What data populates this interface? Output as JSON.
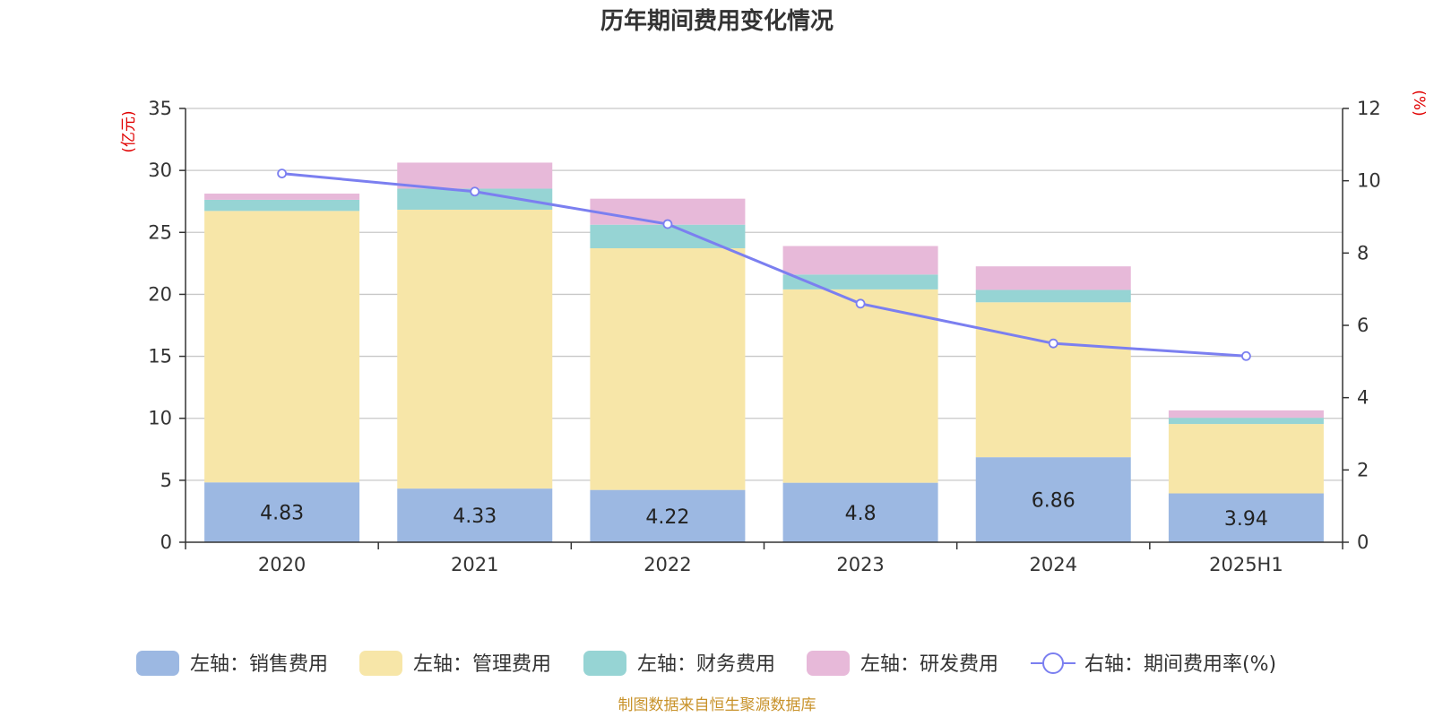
{
  "title": "历年期间费用变化情况",
  "left_unit": "(亿元)",
  "right_unit": "(%)",
  "source": "制图数据来自恒生聚源数据库",
  "colors": {
    "sales": "#9cb8e2",
    "admin": "#f7e6a8",
    "finance": "#96d4d4",
    "rnd": "#e7b9d9",
    "rate": "#7b7ff0",
    "grid": "#c8c8c8",
    "axis": "#333333"
  },
  "chart_data": {
    "type": "bar",
    "stacked": true,
    "categories": [
      "2020",
      "2021",
      "2022",
      "2023",
      "2024",
      "2025H1"
    ],
    "series": [
      {
        "name": "左轴：销售费用",
        "axis": "left",
        "color_key": "sales",
        "values": [
          4.83,
          4.33,
          4.22,
          4.8,
          6.86,
          3.94
        ]
      },
      {
        "name": "左轴：管理费用",
        "axis": "left",
        "color_key": "admin",
        "values": [
          21.9,
          22.5,
          19.5,
          15.6,
          12.5,
          5.6
        ]
      },
      {
        "name": "左轴：财务费用",
        "axis": "left",
        "color_key": "finance",
        "values": [
          0.9,
          1.7,
          1.9,
          1.2,
          1.0,
          0.5
        ]
      },
      {
        "name": "左轴：研发费用",
        "axis": "left",
        "color_key": "rnd",
        "values": [
          0.5,
          2.1,
          2.1,
          2.3,
          1.9,
          0.6
        ]
      },
      {
        "name": "右轴：期间费用率(%)",
        "axis": "right",
        "type": "line",
        "color_key": "rate",
        "values": [
          10.2,
          9.7,
          8.8,
          6.6,
          5.5,
          5.15
        ]
      }
    ],
    "data_labels": [
      "4.83",
      "4.33",
      "4.22",
      "4.8",
      "6.86",
      "3.94"
    ],
    "left_axis": {
      "min": 0,
      "max": 35,
      "ticks": [
        "0",
        "5",
        "10",
        "15",
        "20",
        "25",
        "30",
        "35"
      ]
    },
    "right_axis": {
      "min": 0,
      "max": 12,
      "ticks": [
        "0",
        "2",
        "4",
        "6",
        "8",
        "10",
        "12"
      ]
    },
    "grid": true,
    "legend_position": "bottom"
  }
}
